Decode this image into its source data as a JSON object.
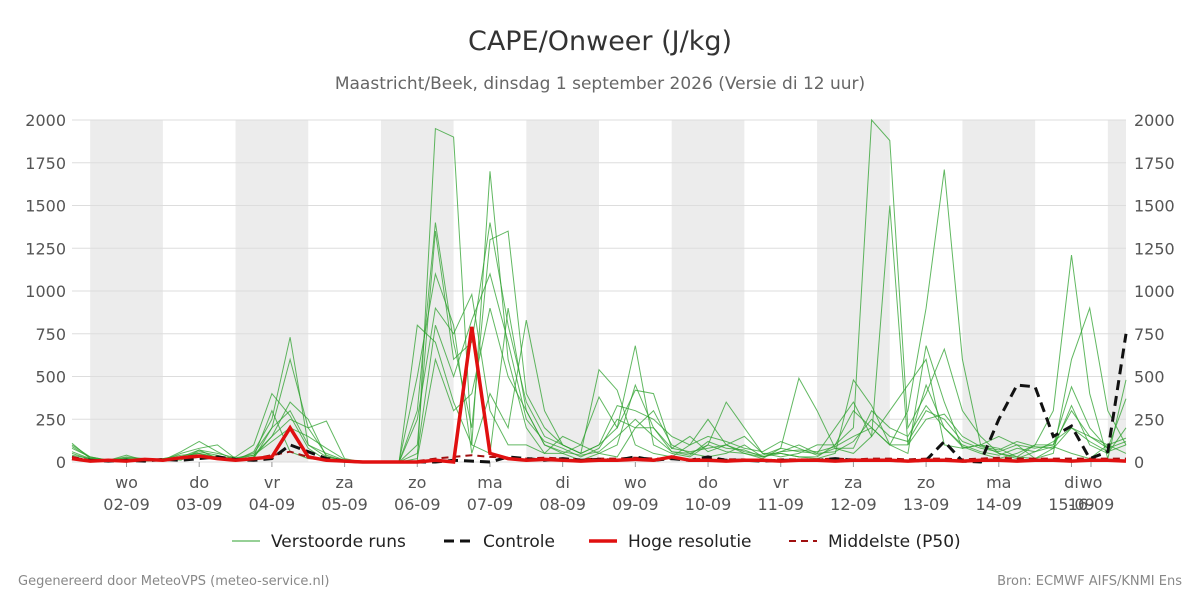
{
  "title": "CAPE/Onweer (J/kg)",
  "subtitle": "Maastricht/Beek, dinsdag  1 september 2026 (Versie di 12 uur)",
  "footer_left": "Gegenereerd door MeteoVPS (meteo-service.nl)",
  "footer_right": "Bron: ECMWF AIFS/KNMI Ens",
  "colors": {
    "ensemble": "#2ca02c",
    "control": "#111111",
    "hires": "#e01010",
    "median": "#a01010",
    "weekend_band": "#ececec",
    "grid": "#dddddd"
  },
  "legend": [
    {
      "label": "Verstoorde runs",
      "style": "ensemble"
    },
    {
      "label": "Controle",
      "style": "control"
    },
    {
      "label": "Hoge resolutie",
      "style": "hires"
    },
    {
      "label": "Middelste (P50)",
      "style": "median"
    }
  ],
  "chart_data": {
    "type": "line",
    "xlabel": "",
    "ylabel": "",
    "x_unit": "days since 2026-09-01 00:00",
    "xlim": [
      2.0,
      16.5
    ],
    "ylim": [
      0,
      2000
    ],
    "yticks": [
      0,
      250,
      500,
      750,
      1000,
      1250,
      1500,
      1750,
      2000
    ],
    "day_ticks": [
      {
        "x": 2.75,
        "day": "wo",
        "date": "02-09"
      },
      {
        "x": 3.75,
        "day": "do",
        "date": "03-09"
      },
      {
        "x": 4.75,
        "day": "vr",
        "date": "04-09"
      },
      {
        "x": 5.75,
        "day": "za",
        "date": "05-09"
      },
      {
        "x": 6.75,
        "day": "zo",
        "date": "06-09"
      },
      {
        "x": 7.75,
        "day": "ma",
        "date": "07-09"
      },
      {
        "x": 8.75,
        "day": "di",
        "date": "08-09"
      },
      {
        "x": 9.75,
        "day": "wo",
        "date": "09-09"
      },
      {
        "x": 10.75,
        "day": "do",
        "date": "10-09"
      },
      {
        "x": 11.75,
        "day": "vr",
        "date": "11-09"
      },
      {
        "x": 12.75,
        "day": "za",
        "date": "12-09"
      },
      {
        "x": 13.75,
        "day": "zo",
        "date": "13-09"
      },
      {
        "x": 14.75,
        "day": "ma",
        "date": "14-09"
      },
      {
        "x": 15.75,
        "day": "di",
        "date": "15-09"
      },
      {
        "x": 16.75,
        "day": "wo",
        "date": "16-09"
      }
    ],
    "shaded_days": [
      [
        2.25,
        3.25
      ],
      [
        4.25,
        5.25
      ],
      [
        6.25,
        7.25
      ],
      [
        8.25,
        9.25
      ],
      [
        10.25,
        11.25
      ],
      [
        12.25,
        13.25
      ],
      [
        14.25,
        15.25
      ],
      [
        16.25,
        16.5
      ]
    ],
    "control": {
      "name": "Controle",
      "x": [
        2.0,
        2.25,
        2.5,
        2.75,
        3.0,
        3.25,
        3.5,
        3.75,
        4.0,
        4.25,
        4.5,
        4.75,
        5.0,
        5.25,
        5.5,
        5.75,
        6.0,
        6.25,
        6.5,
        6.75,
        7.0,
        7.25,
        7.5,
        7.75,
        8.0,
        8.25,
        8.5,
        8.75,
        9.0,
        9.25,
        9.5,
        9.75,
        10.0,
        10.25,
        10.5,
        10.75,
        11.0,
        11.25,
        11.5,
        11.75,
        12.0,
        12.25,
        12.5,
        12.75,
        13.0,
        13.25,
        13.5,
        13.75,
        14.0,
        14.25,
        14.5,
        14.75,
        15.0,
        15.25,
        15.5,
        15.75,
        16.0,
        16.25,
        16.5
      ],
      "values": [
        20,
        10,
        5,
        10,
        5,
        15,
        10,
        20,
        30,
        15,
        10,
        20,
        100,
        60,
        20,
        5,
        0,
        0,
        0,
        0,
        0,
        10,
        5,
        0,
        30,
        20,
        10,
        20,
        10,
        15,
        10,
        30,
        10,
        20,
        10,
        30,
        10,
        10,
        5,
        10,
        10,
        10,
        20,
        10,
        10,
        10,
        5,
        10,
        120,
        5,
        0,
        250,
        450,
        440,
        150,
        210,
        20,
        60,
        750
      ]
    },
    "hires": {
      "name": "Hoge resolutie",
      "x": [
        2.0,
        2.25,
        2.5,
        2.75,
        3.0,
        3.25,
        3.5,
        3.75,
        4.0,
        4.25,
        4.5,
        4.75,
        5.0,
        5.25,
        5.5,
        5.75,
        6.0,
        6.25,
        6.5,
        6.75,
        7.0,
        7.25,
        7.5,
        7.75,
        8.0,
        8.25,
        8.5,
        8.75,
        9.0,
        9.25,
        9.5,
        9.75,
        10.0,
        10.25,
        10.5,
        10.75,
        11.0,
        11.25,
        11.5,
        11.75,
        12.0,
        12.25,
        12.5,
        12.75,
        13.0,
        13.25,
        13.5,
        13.75,
        14.0,
        14.25,
        14.5,
        14.75,
        15.0,
        15.25,
        15.5,
        15.75,
        16.0,
        16.25,
        16.5
      ],
      "values": [
        20,
        5,
        10,
        5,
        15,
        10,
        25,
        35,
        20,
        10,
        20,
        30,
        200,
        30,
        10,
        5,
        0,
        0,
        0,
        0,
        10,
        0,
        790,
        50,
        20,
        10,
        15,
        10,
        5,
        10,
        10,
        15,
        10,
        30,
        10,
        10,
        5,
        10,
        10,
        5,
        10,
        10,
        5,
        10,
        10,
        10,
        5,
        10,
        10,
        5,
        10,
        10,
        5,
        10,
        10,
        5,
        10,
        10,
        5
      ]
    },
    "median": {
      "name": "Middelste (P50)",
      "x": [
        2.0,
        2.25,
        2.5,
        2.75,
        3.0,
        3.25,
        3.5,
        3.75,
        4.0,
        4.25,
        4.5,
        4.75,
        5.0,
        5.25,
        5.5,
        5.75,
        6.0,
        6.25,
        6.5,
        6.75,
        7.0,
        7.25,
        7.5,
        7.75,
        8.0,
        8.25,
        8.5,
        8.75,
        9.0,
        9.25,
        9.5,
        9.75,
        10.0,
        10.25,
        10.5,
        10.75,
        11.0,
        11.25,
        11.5,
        11.75,
        12.0,
        12.25,
        12.5,
        12.75,
        13.0,
        13.25,
        13.5,
        13.75,
        14.0,
        14.25,
        14.5,
        14.75,
        15.0,
        15.25,
        15.5,
        15.75,
        16.0,
        16.25,
        16.5
      ],
      "values": [
        30,
        10,
        10,
        10,
        10,
        15,
        20,
        30,
        25,
        15,
        20,
        40,
        60,
        30,
        10,
        5,
        0,
        0,
        0,
        5,
        20,
        30,
        40,
        30,
        25,
        20,
        25,
        20,
        15,
        20,
        20,
        25,
        20,
        20,
        15,
        20,
        15,
        15,
        10,
        15,
        15,
        15,
        20,
        15,
        20,
        20,
        15,
        20,
        20,
        15,
        20,
        25,
        20,
        20,
        20,
        20,
        20,
        20,
        20
      ]
    },
    "ensemble_members": [
      [
        60,
        20,
        10,
        40,
        10,
        20,
        10,
        70,
        20,
        10,
        30,
        300,
        60,
        20,
        10,
        0,
        0,
        0,
        0,
        800,
        700,
        350,
        100,
        1700,
        600,
        200,
        50,
        150,
        100,
        50,
        100,
        450,
        200,
        60,
        50,
        100,
        60,
        50,
        30,
        60,
        100,
        50,
        200,
        350,
        150,
        300,
        450,
        600,
        100,
        80,
        100,
        50,
        20,
        60,
        90,
        50,
        20,
        100,
        50
      ],
      [
        100,
        30,
        10,
        20,
        5,
        10,
        20,
        60,
        40,
        10,
        60,
        250,
        730,
        100,
        30,
        10,
        0,
        0,
        0,
        0,
        1950,
        1900,
        100,
        50,
        900,
        300,
        100,
        50,
        10,
        50,
        30,
        200,
        300,
        100,
        50,
        30,
        50,
        100,
        30,
        50,
        30,
        30,
        100,
        300,
        200,
        100,
        300,
        900,
        1710,
        600,
        100,
        150,
        100,
        20,
        50,
        600,
        900,
        300,
        100
      ],
      [
        80,
        30,
        10,
        10,
        10,
        20,
        30,
        50,
        20,
        30,
        100,
        400,
        270,
        80,
        10,
        0,
        0,
        0,
        0,
        300,
        1400,
        700,
        200,
        1300,
        1350,
        400,
        200,
        100,
        50,
        100,
        200,
        680,
        100,
        50,
        30,
        100,
        350,
        200,
        50,
        30,
        50,
        100,
        100,
        200,
        2000,
        1880,
        200,
        400,
        660,
        300,
        150,
        50,
        30,
        100,
        300,
        1210,
        400,
        20,
        480
      ],
      [
        40,
        20,
        5,
        5,
        10,
        10,
        50,
        80,
        100,
        20,
        20,
        200,
        600,
        200,
        40,
        5,
        0,
        0,
        5,
        500,
        1100,
        800,
        50,
        400,
        200,
        830,
        300,
        100,
        50,
        540,
        420,
        100,
        50,
        30,
        100,
        250,
        100,
        150,
        50,
        50,
        30,
        20,
        50,
        480,
        330,
        100,
        50,
        680,
        350,
        80,
        100,
        80,
        30,
        20,
        80,
        330,
        100,
        50,
        200
      ],
      [
        110,
        20,
        10,
        30,
        20,
        10,
        60,
        120,
        60,
        10,
        30,
        150,
        350,
        250,
        30,
        10,
        0,
        0,
        0,
        250,
        900,
        750,
        980,
        300,
        100,
        100,
        50,
        50,
        100,
        380,
        200,
        420,
        400,
        80,
        150,
        60,
        100,
        50,
        20,
        80,
        490,
        300,
        80,
        50,
        150,
        1500,
        100,
        450,
        200,
        90,
        50,
        20,
        50,
        100,
        100,
        440,
        200,
        80,
        370
      ],
      [
        30,
        10,
        5,
        15,
        5,
        10,
        20,
        30,
        20,
        15,
        40,
        150,
        250,
        200,
        240,
        20,
        0,
        0,
        0,
        100,
        1350,
        600,
        700,
        1400,
        800,
        350,
        150,
        100,
        50,
        100,
        330,
        300,
        250,
        150,
        100,
        150,
        120,
        80,
        60,
        120,
        80,
        40,
        80,
        80,
        300,
        200,
        150,
        330,
        200,
        100,
        60,
        40,
        80,
        60,
        120,
        200,
        150,
        100,
        140
      ],
      [
        50,
        15,
        5,
        20,
        10,
        20,
        40,
        50,
        30,
        20,
        50,
        200,
        300,
        100,
        50,
        10,
        0,
        0,
        0,
        50,
        800,
        500,
        830,
        1100,
        700,
        250,
        120,
        80,
        30,
        80,
        250,
        200,
        200,
        80,
        60,
        80,
        100,
        60,
        40,
        80,
        60,
        50,
        60,
        120,
        250,
        150,
        120,
        300,
        250,
        120,
        80,
        60,
        100,
        80,
        100,
        300,
        150,
        80,
        120
      ],
      [
        90,
        25,
        10,
        25,
        15,
        15,
        30,
        70,
        50,
        25,
        40,
        120,
        200,
        150,
        80,
        15,
        0,
        0,
        0,
        20,
        600,
        300,
        400,
        900,
        500,
        300,
        100,
        60,
        40,
        60,
        150,
        250,
        150,
        60,
        40,
        120,
        80,
        70,
        30,
        60,
        70,
        60,
        90,
        150,
        200,
        100,
        100,
        250,
        280,
        150,
        90,
        70,
        120,
        90,
        80,
        200,
        120,
        60,
        100
      ]
    ]
  }
}
